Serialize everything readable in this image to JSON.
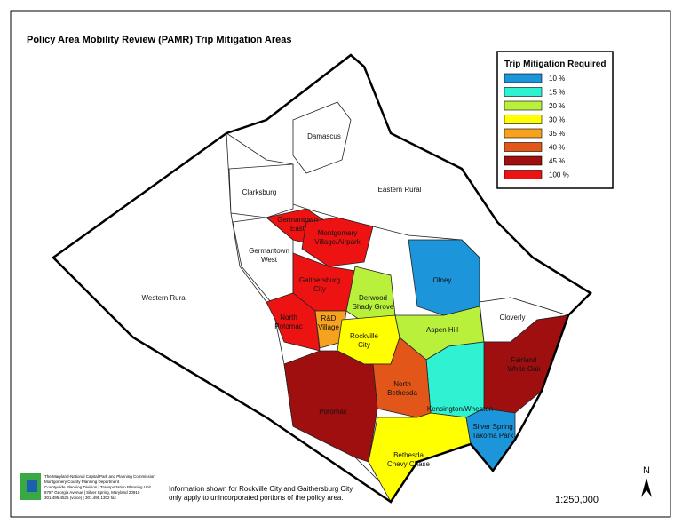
{
  "title": "Policy Area Mobility Review (PAMR) Trip Mitigation Areas",
  "legend": {
    "title": "Trip Mitigation Required",
    "items": [
      {
        "label": "10 %",
        "color": "#1c95da"
      },
      {
        "label": "15 %",
        "color": "#2ef2d2"
      },
      {
        "label": "20 %",
        "color": "#b8f03c"
      },
      {
        "label": "30 %",
        "color": "#ffff00"
      },
      {
        "label": "35 %",
        "color": "#f7a21e"
      },
      {
        "label": "40 %",
        "color": "#e2561a"
      },
      {
        "label": "45 %",
        "color": "#a00f0f"
      },
      {
        "label": "100 %",
        "color": "#ee1313"
      }
    ]
  },
  "regions": [
    {
      "label": [
        "Western Rural"
      ],
      "color": "#ffffff"
    },
    {
      "label": [
        "Eastern Rural"
      ],
      "color": "#ffffff"
    },
    {
      "label": [
        "Damascus"
      ],
      "color": "#ffffff"
    },
    {
      "label": [
        "Clarksburg"
      ],
      "color": "#ffffff"
    },
    {
      "label": [
        "Germantown",
        "West"
      ],
      "color": "#ffffff"
    },
    {
      "label": [
        "Germantown",
        "East"
      ],
      "color": "#ee1313"
    },
    {
      "label": [
        "Montgomery",
        "Village/Airpark"
      ],
      "color": "#ee1313"
    },
    {
      "label": [
        "Gaithersburg",
        "City"
      ],
      "color": "#ee1313"
    },
    {
      "label": [
        "North",
        "Potomac"
      ],
      "color": "#ee1313"
    },
    {
      "label": [
        "Derwood",
        "Shady Grove"
      ],
      "color": "#b8f03c"
    },
    {
      "label": [
        "R&D",
        "Village"
      ],
      "color": "#f7a21e"
    },
    {
      "label": [
        "Rockville",
        "City"
      ],
      "color": "#ffff00"
    },
    {
      "label": [
        "Olney"
      ],
      "color": "#1c95da"
    },
    {
      "label": [
        "Aspen Hill"
      ],
      "color": "#b8f03c"
    },
    {
      "label": [
        "Cloverly"
      ],
      "color": "#ffffff"
    },
    {
      "label": [
        "Fairland",
        "White Oak"
      ],
      "color": "#a00f0f"
    },
    {
      "label": [
        "Kensington/Wheaton"
      ],
      "color": "#2ef2d2"
    },
    {
      "label": [
        "North",
        "Bethesda"
      ],
      "color": "#e2561a"
    },
    {
      "label": [
        "Potomac"
      ],
      "color": "#a00f0f"
    },
    {
      "label": [
        "Bethesda",
        "Chevy Chase"
      ],
      "color": "#ffff00"
    },
    {
      "label": [
        "Silver Spring",
        "Takoma Park"
      ],
      "color": "#1c95da"
    }
  ],
  "footer": {
    "agency_lines": [
      "The Maryland-National Capital Park and Planning Commission",
      "Montgomery County Planning Department",
      "Countywide Planning Division | Transportation Planning Unit",
      "8787 Georgia Avenue | Silver Spring, Maryland 20910",
      "301.495.4525 (voice) | 301.495.1302 fax"
    ],
    "note": [
      "Information shown for Rockville City and Gaithersburg City",
      "only apply to unincorporated portions of the policy area."
    ],
    "north": "N",
    "scale": "1:250,000"
  }
}
